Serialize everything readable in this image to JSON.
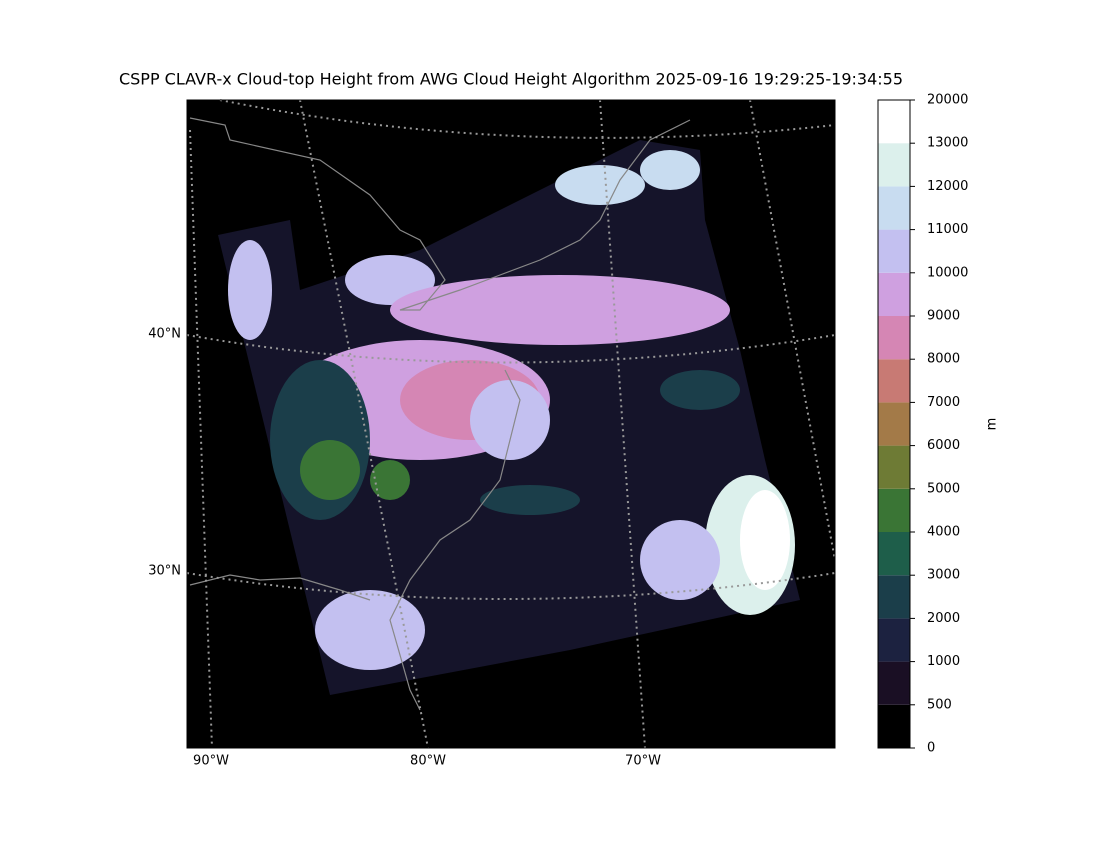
{
  "title": "CSPP CLAVR-x Cloud-top Height from AWG Cloud Height Algorithm 2025-09-16 19:29:25-19:34:55",
  "map": {
    "lat_labels": [
      "40°N",
      "30°N"
    ],
    "lon_labels": [
      "90°W",
      "80°W",
      "70°W"
    ]
  },
  "colorbar": {
    "label": "m",
    "ticks": [
      0,
      500,
      1000,
      2000,
      3000,
      4000,
      5000,
      6000,
      7000,
      8000,
      9000,
      10000,
      11000,
      12000,
      13000,
      20000
    ],
    "colors": [
      "#000000",
      "#1a0f24",
      "#1c2240",
      "#1b3e4a",
      "#1e5e4a",
      "#3a7535",
      "#6e7b35",
      "#a37a48",
      "#c87a74",
      "#d586b4",
      "#cfa0e0",
      "#c3c0f0",
      "#c8dcf0",
      "#dcf0ec",
      "#ffffff"
    ]
  }
}
